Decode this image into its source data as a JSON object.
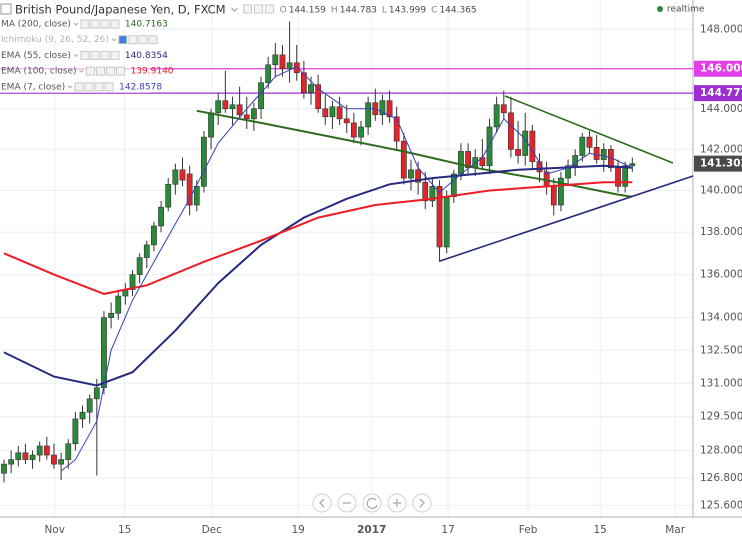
{
  "chart_data": {
    "type": "candlestick",
    "title": "British Pound/Japanese Yen, D, FXCM",
    "realtime_label": "realtime",
    "header_ohlc": [
      {
        "label": "O",
        "value": 144.159
      },
      {
        "label": "H",
        "value": 144.783
      },
      {
        "label": "L",
        "value": 143.999
      },
      {
        "label": "C",
        "value": 144.365
      }
    ],
    "log_scale": true,
    "grid": true,
    "ylim": [
      125.1,
      149.5
    ],
    "yticks": [
      {
        "value": 148,
        "label": "148.000"
      },
      {
        "value": 144,
        "label": "144.000"
      },
      {
        "value": 142,
        "label": "142.000"
      },
      {
        "value": 140,
        "label": "140.000"
      },
      {
        "value": 138,
        "label": "138.000"
      },
      {
        "value": 136,
        "label": "136.000"
      },
      {
        "value": 134,
        "label": "134.000"
      },
      {
        "value": 132.5,
        "label": "132.500"
      },
      {
        "value": 131,
        "label": "131.000"
      },
      {
        "value": 129.5,
        "label": "129.500"
      },
      {
        "value": 128,
        "label": "128.000"
      },
      {
        "value": 126.8,
        "label": "126.800"
      },
      {
        "value": 125.6,
        "label": "125.600"
      }
    ],
    "xlim": [
      -0.56,
      96.5
    ],
    "xticks": [
      {
        "value": 7.1,
        "label": "Nov"
      },
      {
        "value": 16.9,
        "label": "15"
      },
      {
        "value": 29.1,
        "label": "Dec"
      },
      {
        "value": 41.2,
        "label": "19"
      },
      {
        "value": 51.5,
        "label": "2017",
        "bold": true
      },
      {
        "value": 62.2,
        "label": "17"
      },
      {
        "value": 73.4,
        "label": "Feb"
      },
      {
        "value": 83.5,
        "label": "15"
      },
      {
        "value": 94.0,
        "label": "Mar"
      }
    ],
    "candles": {
      "up_color": "#2a8a3a",
      "down_color": "#e0262a",
      "open": [
        127.0,
        127.4,
        127.6,
        127.9,
        127.6,
        127.8,
        128.2,
        127.8,
        127.4,
        127.6,
        128.3,
        129.4,
        129.7,
        130.3,
        130.8,
        134.0,
        134.2,
        135.0,
        135.3,
        136.0,
        136.8,
        137.4,
        138.3,
        139.2,
        140.3,
        141.0,
        140.8,
        139.3,
        140.2,
        142.6,
        143.8,
        144.4,
        144.0,
        144.2,
        143.7,
        143.5,
        144.0,
        145.3,
        146.2,
        146.7,
        146.0,
        146.3,
        145.8,
        144.8,
        145.2,
        144.0,
        143.6,
        144.1,
        143.5,
        143.3,
        142.6,
        143.1,
        144.3,
        143.7,
        144.4,
        143.6,
        142.4,
        140.6,
        141.0,
        140.4,
        139.5,
        140.2,
        137.3,
        139.7,
        140.8,
        141.9,
        141.1,
        141.6,
        141.2,
        143.1,
        144.2,
        143.8,
        142.0,
        141.7,
        142.9,
        141.4,
        140.9,
        140.2,
        139.3,
        140.6,
        141.2,
        141.7,
        142.6,
        142.1,
        141.5,
        142.0,
        141.1,
        140.2,
        141.2
      ],
      "high": [
        127.6,
        128.0,
        128.2,
        128.3,
        128.0,
        128.4,
        128.6,
        128.3,
        127.9,
        128.5,
        129.7,
        130.0,
        130.5,
        131.2,
        134.3,
        134.7,
        135.3,
        135.6,
        136.2,
        137.0,
        137.6,
        138.5,
        139.5,
        140.6,
        141.3,
        141.6,
        141.2,
        140.5,
        142.9,
        144.0,
        144.8,
        145.9,
        144.6,
        145.1,
        144.6,
        144.3,
        145.6,
        146.6,
        147.3,
        147.2,
        148.4,
        147.2,
        146.4,
        145.6,
        145.7,
        144.7,
        144.4,
        144.6,
        144.2,
        143.8,
        143.4,
        144.6,
        145.0,
        144.7,
        144.9,
        144.1,
        142.8,
        141.5,
        141.4,
        140.9,
        140.6,
        140.5,
        140.0,
        141.0,
        142.3,
        142.3,
        142.0,
        142.5,
        143.5,
        144.6,
        144.9,
        144.6,
        143.4,
        143.8,
        143.2,
        141.8,
        141.4,
        140.6,
        140.9,
        141.5,
        142.0,
        142.8,
        142.9,
        142.7,
        142.3,
        142.2,
        141.5,
        141.4,
        141.6
      ],
      "low": [
        126.6,
        127.0,
        127.3,
        127.4,
        127.2,
        127.5,
        127.6,
        127.2,
        126.7,
        127.2,
        128.0,
        129.0,
        129.2,
        126.9,
        130.5,
        133.5,
        133.9,
        134.6,
        135.0,
        135.6,
        136.3,
        137.1,
        138.0,
        139.0,
        139.8,
        140.2,
        138.8,
        139.0,
        139.9,
        142.0,
        143.2,
        143.8,
        143.2,
        143.5,
        143.0,
        142.9,
        143.5,
        145.0,
        145.6,
        145.6,
        145.3,
        145.4,
        144.5,
        144.2,
        143.8,
        143.2,
        143.0,
        143.2,
        142.8,
        142.3,
        142.2,
        142.7,
        143.4,
        143.2,
        143.3,
        142.0,
        140.3,
        140.0,
        139.8,
        139.1,
        139.2,
        136.6,
        137.0,
        139.4,
        140.5,
        140.8,
        140.7,
        141.0,
        140.8,
        142.8,
        143.5,
        141.6,
        141.3,
        141.2,
        141.0,
        140.4,
        139.8,
        138.8,
        139.0,
        140.2,
        140.7,
        141.4,
        141.8,
        141.3,
        140.9,
        140.9,
        139.9,
        139.9,
        140.9
      ],
      "close": [
        127.4,
        127.6,
        127.9,
        127.6,
        127.8,
        128.2,
        127.8,
        127.4,
        127.6,
        128.3,
        129.4,
        129.7,
        130.3,
        130.8,
        134.0,
        134.2,
        135.0,
        135.3,
        136.0,
        136.8,
        137.4,
        138.3,
        139.2,
        140.3,
        141.0,
        140.5,
        139.3,
        140.2,
        142.6,
        143.8,
        144.4,
        144.0,
        144.2,
        143.7,
        143.5,
        144.0,
        145.3,
        146.2,
        146.7,
        146.0,
        146.3,
        145.8,
        144.8,
        145.2,
        144.0,
        143.6,
        144.1,
        143.5,
        143.3,
        142.6,
        143.1,
        144.3,
        143.7,
        144.4,
        143.6,
        142.4,
        140.6,
        141.0,
        140.4,
        139.5,
        140.2,
        137.3,
        139.7,
        140.8,
        141.9,
        141.1,
        141.6,
        141.2,
        143.1,
        144.2,
        143.8,
        142.0,
        141.7,
        142.9,
        141.4,
        140.9,
        140.2,
        139.3,
        140.6,
        141.2,
        141.7,
        142.6,
        142.1,
        141.5,
        142.0,
        141.1,
        140.2,
        141.2,
        141.3
      ]
    },
    "lines": [
      {
        "name": "MA (200, close)",
        "legend_value": 140.7163,
        "color": "#2e6b1f",
        "width": 2,
        "x": [
          27,
          36,
          46,
          56,
          66,
          76,
          86,
          88
        ],
        "values": [
          143.9,
          143.3,
          142.6,
          141.9,
          141.1,
          140.5,
          139.8,
          139.7
        ]
      },
      {
        "name": "Ichimoku (9, 26, 52, 26)",
        "hidden": true,
        "color": "#9aa0b0"
      },
      {
        "name": "EMA (55, close)",
        "legend_value": 140.8354,
        "color": "#262a80",
        "width": 2,
        "x": [
          0,
          7,
          13,
          18,
          24,
          30,
          36,
          42,
          48,
          54,
          60,
          66,
          72,
          78,
          84,
          88
        ],
        "values": [
          132.4,
          131.3,
          130.9,
          131.5,
          133.4,
          135.6,
          137.4,
          138.7,
          139.6,
          140.3,
          140.6,
          140.8,
          141.0,
          141.1,
          141.2,
          141.1
        ]
      },
      {
        "name": "EMA (100, close)",
        "legend_value": {
          "value": 139.914,
          "label": "139.9140"
        },
        "color": "#ee1c25",
        "width": 2,
        "x": [
          0,
          7,
          14,
          20,
          28,
          36,
          44,
          52,
          60,
          68,
          76,
          84,
          88
        ],
        "values": [
          137.0,
          136.0,
          135.1,
          135.5,
          136.6,
          137.6,
          138.7,
          139.3,
          139.6,
          140.0,
          140.2,
          140.4,
          140.4
        ]
      },
      {
        "name": "EMA (7, close)",
        "legend_value": 142.8578,
        "color": "#3b3fb5",
        "width": 1,
        "x": [
          8,
          10,
          13,
          15,
          18,
          22,
          26,
          30,
          34,
          38,
          41,
          44,
          48,
          52,
          55,
          58,
          61,
          64,
          67,
          70,
          73,
          76,
          79,
          82,
          85,
          88
        ],
        "values": [
          127.1,
          127.6,
          129.3,
          132.5,
          134.8,
          137.2,
          139.6,
          142.3,
          144.0,
          145.6,
          146.1,
          145.0,
          144.0,
          144.0,
          143.5,
          141.1,
          139.9,
          140.8,
          141.6,
          143.5,
          142.5,
          140.8,
          141.1,
          141.8,
          141.6,
          141.1
        ]
      }
    ],
    "price_lines": [
      {
        "value": 146,
        "label": "146.000",
        "color": "#e23ee8"
      },
      {
        "value": 144.777,
        "color": "#9b2fd0"
      }
    ],
    "last_price": {
      "value": 141.302,
      "color": "#4a4a4a"
    }
  }
}
